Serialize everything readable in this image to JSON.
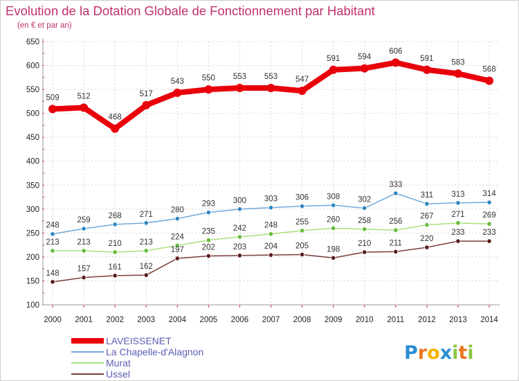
{
  "chart_data": {
    "type": "line",
    "title": "Evolution de la Dotation Globale de Fonctionnement par Habitant",
    "subtitle": "(en € et par an)",
    "xlabel": "",
    "ylabel": "",
    "ylim": [
      100,
      650
    ],
    "yticks": [
      100,
      150,
      200,
      250,
      300,
      350,
      400,
      450,
      500,
      550,
      600,
      650
    ],
    "grid": true,
    "legend_position": "bottom-left",
    "categories": [
      "2000",
      "2001",
      "2002",
      "2003",
      "2004",
      "2005",
      "2006",
      "2007",
      "2008",
      "2009",
      "2010",
      "2011",
      "2012",
      "2013",
      "2014"
    ],
    "series": [
      {
        "name": "LAVEISSENET",
        "color": "#e8000b",
        "emphasis": true,
        "values": [
          509,
          512,
          468,
          517,
          543,
          550,
          553,
          553,
          547,
          591,
          594,
          606,
          591,
          583,
          568
        ]
      },
      {
        "name": "La Chapelle-d'Alagnon",
        "color": "#6fa8dc",
        "marker": "#2e86c1",
        "values": [
          248,
          259,
          268,
          271,
          280,
          293,
          300,
          303,
          306,
          308,
          302,
          333,
          311,
          313,
          314
        ]
      },
      {
        "name": "Murat",
        "color": "#a6e07a",
        "marker": "#66bb3a",
        "values": [
          213,
          213,
          210,
          213,
          224,
          235,
          242,
          248,
          255,
          260,
          258,
          256,
          267,
          271,
          269
        ]
      },
      {
        "name": "Ussel",
        "color": "#7b3b3b",
        "marker": "#5a1a1a",
        "values": [
          148,
          157,
          161,
          162,
          197,
          202,
          203,
          204,
          205,
          198,
          210,
          211,
          220,
          233,
          233
        ]
      }
    ]
  },
  "branding": {
    "logo_text": "Proxiti"
  }
}
